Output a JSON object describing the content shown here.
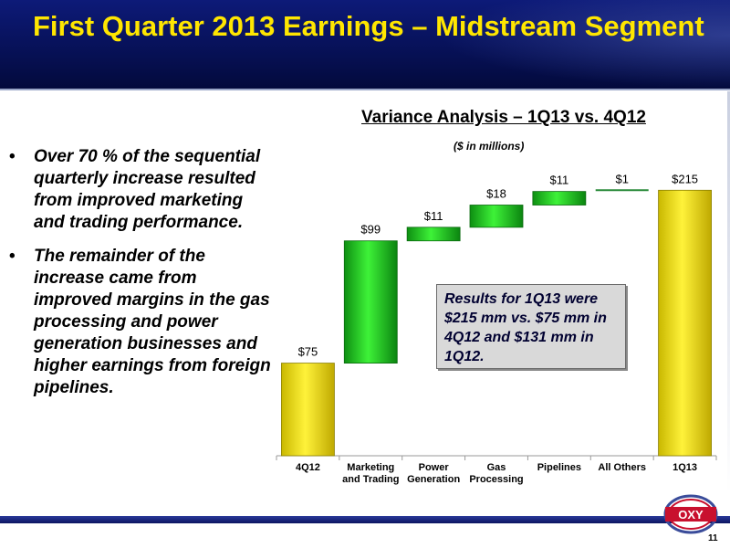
{
  "header": {
    "title": "First Quarter 2013 Earnings – Midstream Segment"
  },
  "bullets": [
    "Over 70 % of the sequential quarterly increase resulted from improved marketing and trading performance.",
    "The remainder of the increase came from improved margins in the gas processing and power generation businesses and higher earnings from foreign pipelines."
  ],
  "bullet_glyph": "•",
  "callout": "Results for 1Q13 were $215 mm vs. $75 mm in 4Q12 and $131 mm in 1Q12.",
  "footer": {
    "logo_text": "OXY",
    "page_number": "11"
  },
  "chart_data": {
    "type": "waterfall",
    "title": "Variance Analysis – 1Q13 vs. 4Q12",
    "subtitle": "($ in millions)",
    "categories": [
      [
        "4Q12"
      ],
      [
        "Marketing",
        "and Trading"
      ],
      [
        "Power",
        "Generation"
      ],
      [
        "Gas",
        "Processing"
      ],
      [
        "Pipelines"
      ],
      [
        "All Others"
      ],
      [
        "1Q13"
      ]
    ],
    "values": [
      75,
      99,
      11,
      18,
      11,
      1,
      215
    ],
    "kinds": [
      "total",
      "delta",
      "delta",
      "delta",
      "delta",
      "delta",
      "total"
    ],
    "labels": [
      "$75",
      "$99",
      "$11",
      "$18",
      "$11",
      "$1",
      "$215"
    ],
    "ylim": [
      0,
      230
    ],
    "colors": {
      "total": "#f2e400",
      "delta": "#22d21c",
      "small_delta": "#2a8a3a"
    }
  }
}
